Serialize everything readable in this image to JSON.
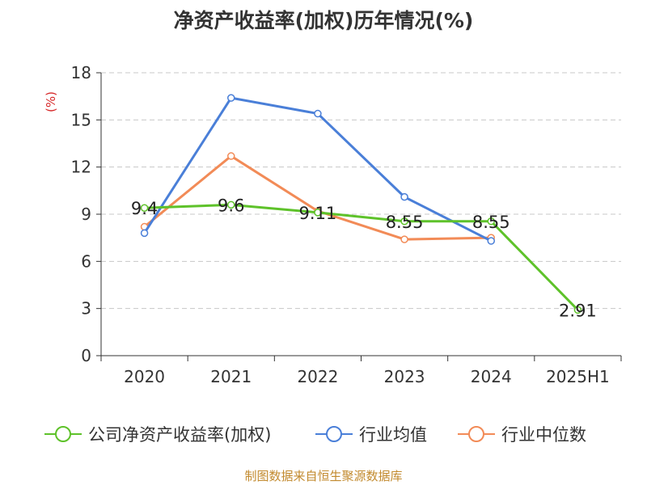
{
  "chart_data": {
    "type": "line",
    "title": "净资产收益率(加权)历年情况(%)",
    "ylabel": "(%)",
    "categories": [
      "2020",
      "2021",
      "2022",
      "2023",
      "2024",
      "2025H1"
    ],
    "ylim": [
      0,
      18
    ],
    "yticks": [
      "0",
      "3",
      "6",
      "9",
      "12",
      "15",
      "18"
    ],
    "grid": true,
    "legend_position": "bottom",
    "series": [
      {
        "name": "公司净资产收益率(加权)",
        "color": "#5ec22a",
        "values": [
          9.4,
          9.6,
          9.11,
          8.55,
          8.55,
          2.91
        ],
        "labels": [
          "9.4",
          "9.6",
          "9.11",
          "8.55",
          "8.55",
          "2.91"
        ]
      },
      {
        "name": "行业均值",
        "color": "#4a7fd8",
        "values": [
          7.8,
          16.4,
          15.4,
          10.1,
          7.3,
          null
        ]
      },
      {
        "name": "行业中位数",
        "color": "#f28b57",
        "values": [
          8.2,
          12.7,
          9.2,
          7.4,
          7.5,
          null
        ]
      }
    ]
  },
  "footer": "制图数据来自恒生聚源数据库"
}
